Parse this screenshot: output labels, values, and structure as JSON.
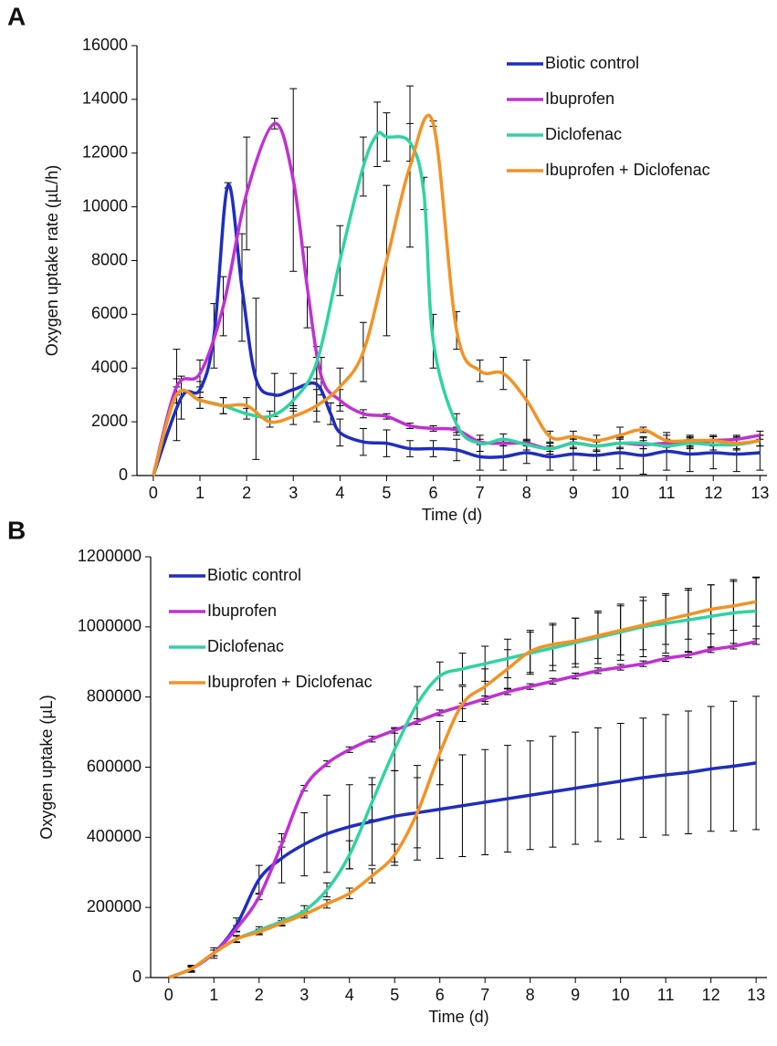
{
  "chart_data": [
    {
      "type": "line",
      "panel": "A",
      "x_label": "Time (d)",
      "y_label": "Oxygen uptake rate (µL/h)",
      "xlim": [
        -0.35,
        13.15
      ],
      "xticks": [
        0,
        1,
        2,
        3,
        4,
        5,
        6,
        7,
        8,
        9,
        10,
        11,
        12,
        13
      ],
      "ylim": [
        0,
        16000
      ],
      "yticks": [
        0,
        2000,
        4000,
        6000,
        8000,
        10000,
        12000,
        14000,
        16000
      ],
      "legend": "upper right",
      "series": [
        {
          "name": "Biotic control",
          "color": "#1f2dbf",
          "x": [
            0,
            0.6,
            1,
            1.3,
            1.6,
            1.9,
            2.2,
            2.6,
            3,
            3.5,
            3.8,
            4,
            4.5,
            5,
            5.5,
            6,
            6.5,
            7,
            7.5,
            8,
            8.5,
            9,
            9.5,
            10,
            10.5,
            11,
            11.5,
            12,
            12.5,
            13
          ],
          "values": [
            0,
            2900,
            3200,
            5200,
            10800,
            7000,
            3600,
            3000,
            3200,
            3400,
            2300,
            1600,
            1250,
            1200,
            1000,
            1000,
            950,
            700,
            700,
            850,
            700,
            800,
            750,
            850,
            750,
            900,
            800,
            850,
            800,
            850
          ],
          "errors": [
            0,
            800,
            300,
            1200,
            100,
            2000,
            3000,
            800,
            600,
            1000,
            400,
            500,
            500,
            500,
            300,
            300,
            400,
            500,
            500,
            400,
            500,
            600,
            550,
            600,
            700,
            700,
            650,
            600,
            650,
            650
          ]
        },
        {
          "name": "Ibuprofen",
          "color": "#c130d3",
          "x": [
            0,
            0.5,
            1,
            1.5,
            2,
            2.6,
            3,
            3.3,
            3.6,
            4,
            4.5,
            5,
            5.5,
            6,
            6.5,
            7,
            7.5,
            8,
            8.5,
            9,
            9.5,
            10,
            10.5,
            11,
            11.5,
            12,
            12.5,
            13
          ],
          "values": [
            0,
            3300,
            3800,
            6300,
            10500,
            13100,
            11000,
            7000,
            3700,
            2800,
            2300,
            2200,
            1850,
            1750,
            1700,
            1250,
            1200,
            1200,
            1000,
            1200,
            1100,
            1200,
            1150,
            1200,
            1200,
            1300,
            1350,
            1500
          ],
          "errors": [
            0,
            300,
            500,
            1100,
            2100,
            200,
            3400,
            1500,
            700,
            400,
            150,
            100,
            100,
            100,
            100,
            100,
            100,
            100,
            100,
            150,
            150,
            150,
            150,
            150,
            150,
            150,
            150,
            150
          ]
        },
        {
          "name": "Diclofenac",
          "color": "#2fd4a0",
          "x": [
            0,
            0.5,
            1,
            1.5,
            2,
            2.5,
            3,
            3.5,
            4,
            4.5,
            4.8,
            5,
            5.5,
            5.8,
            6,
            6.5,
            7,
            7.5,
            8,
            8.5,
            9,
            9.5,
            10,
            10.5,
            11,
            11.5,
            12,
            12.5,
            13
          ],
          "values": [
            0,
            3000,
            2800,
            2600,
            2300,
            2200,
            2800,
            4200,
            8000,
            11500,
            12700,
            12600,
            12400,
            10500,
            5000,
            1900,
            1200,
            1350,
            1150,
            1000,
            1200,
            1100,
            1200,
            1200,
            1100,
            1200,
            1150,
            1150,
            1300
          ],
          "errors": [
            0,
            300,
            300,
            300,
            200,
            200,
            400,
            600,
            1300,
            1100,
            1200,
            900,
            700,
            600,
            1000,
            400,
            300,
            200,
            200,
            200,
            200,
            200,
            200,
            200,
            200,
            200,
            200,
            200,
            200
          ]
        },
        {
          "name": "Ibuprofen + Diclofenac",
          "color": "#f39224",
          "x": [
            0,
            0.5,
            1,
            1.5,
            2,
            2.5,
            3,
            3.5,
            4,
            4.5,
            5,
            5.5,
            6,
            6.5,
            7,
            7.5,
            8,
            8.5,
            9,
            9.5,
            10,
            10.5,
            11,
            11.5,
            12,
            12.5,
            13
          ],
          "values": [
            0,
            3000,
            2800,
            2600,
            2600,
            2000,
            2200,
            2600,
            3300,
            4600,
            8000,
            11500,
            13100,
            5400,
            3900,
            3800,
            2800,
            1450,
            1450,
            1300,
            1500,
            1700,
            1300,
            1300,
            1300,
            1200,
            1300
          ],
          "errors": [
            0,
            1700,
            300,
            300,
            300,
            200,
            300,
            600,
            700,
            1100,
            2800,
            3000,
            100,
            700,
            400,
            600,
            1500,
            200,
            200,
            200,
            300,
            100,
            200,
            200,
            200,
            200,
            200
          ]
        }
      ]
    },
    {
      "type": "line",
      "panel": "B",
      "x_label": "Time (d)",
      "y_label": "Oxygen uptake (µL)",
      "xlim": [
        -0.4,
        13.24
      ],
      "xticks": [
        0,
        1,
        2,
        3,
        4,
        5,
        6,
        7,
        8,
        9,
        10,
        11,
        12,
        13
      ],
      "ylim": [
        0,
        1200000
      ],
      "yticks": [
        0,
        200000,
        400000,
        600000,
        800000,
        1000000,
        1200000
      ],
      "legend": "upper left",
      "x": [
        0,
        0.5,
        1,
        1.5,
        2,
        2.5,
        3,
        3.5,
        4,
        4.5,
        5,
        5.5,
        6,
        6.5,
        7,
        7.5,
        8,
        8.5,
        9,
        9.5,
        10,
        10.5,
        11,
        11.5,
        12,
        12.5,
        13
      ],
      "series": [
        {
          "name": "Biotic control",
          "color": "#1f2dbf",
          "values": [
            0,
            25000,
            70000,
            150000,
            280000,
            340000,
            380000,
            410000,
            430000,
            445000,
            460000,
            470000,
            480000,
            490000,
            500000,
            510000,
            520000,
            530000,
            540000,
            550000,
            560000,
            570000,
            578000,
            585000,
            595000,
            603000,
            612000
          ],
          "errors": [
            0,
            10000,
            15000,
            20000,
            40000,
            70000,
            90000,
            110000,
            120000,
            125000,
            130000,
            135000,
            140000,
            145000,
            150000,
            152000,
            155000,
            158000,
            160000,
            162000,
            165000,
            170000,
            172000,
            175000,
            178000,
            185000,
            190000
          ]
        },
        {
          "name": "Ibuprofen",
          "color": "#c130d3",
          "values": [
            0,
            25000,
            70000,
            140000,
            230000,
            380000,
            540000,
            610000,
            650000,
            680000,
            705000,
            730000,
            755000,
            775000,
            795000,
            815000,
            830000,
            845000,
            860000,
            875000,
            885000,
            895000,
            910000,
            920000,
            935000,
            945000,
            958000
          ],
          "errors": [
            0,
            8000,
            8000,
            8000,
            8000,
            8000,
            8000,
            8000,
            8000,
            8000,
            8000,
            8000,
            8000,
            8000,
            8000,
            8000,
            8000,
            8000,
            8000,
            8000,
            8000,
            8000,
            8000,
            8000,
            8000,
            8000,
            8000
          ]
        },
        {
          "name": "Diclofenac",
          "color": "#2fd4a0",
          "values": [
            0,
            25000,
            70000,
            110000,
            135000,
            160000,
            190000,
            250000,
            350000,
            500000,
            650000,
            780000,
            860000,
            880000,
            895000,
            910000,
            925000,
            940000,
            955000,
            970000,
            985000,
            1000000,
            1010000,
            1020000,
            1030000,
            1040000,
            1045000
          ],
          "errors": [
            0,
            5000,
            8000,
            10000,
            10000,
            10000,
            15000,
            20000,
            40000,
            50000,
            60000,
            50000,
            40000,
            45000,
            50000,
            55000,
            60000,
            65000,
            70000,
            75000,
            80000,
            85000,
            85000,
            90000,
            90000,
            95000,
            95000
          ]
        },
        {
          "name": "Ibuprofen + Diclofenac",
          "color": "#f39224",
          "values": [
            0,
            25000,
            70000,
            110000,
            130000,
            155000,
            180000,
            210000,
            240000,
            290000,
            350000,
            470000,
            640000,
            780000,
            830000,
            880000,
            930000,
            950000,
            960000,
            975000,
            990000,
            1005000,
            1020000,
            1035000,
            1050000,
            1060000,
            1072000
          ],
          "errors": [
            0,
            5000,
            8000,
            8000,
            8000,
            8000,
            10000,
            12000,
            15000,
            20000,
            30000,
            100000,
            90000,
            50000,
            50000,
            55000,
            60000,
            60000,
            65000,
            65000,
            70000,
            70000,
            70000,
            70000,
            70000,
            70000,
            70000
          ]
        }
      ]
    }
  ]
}
